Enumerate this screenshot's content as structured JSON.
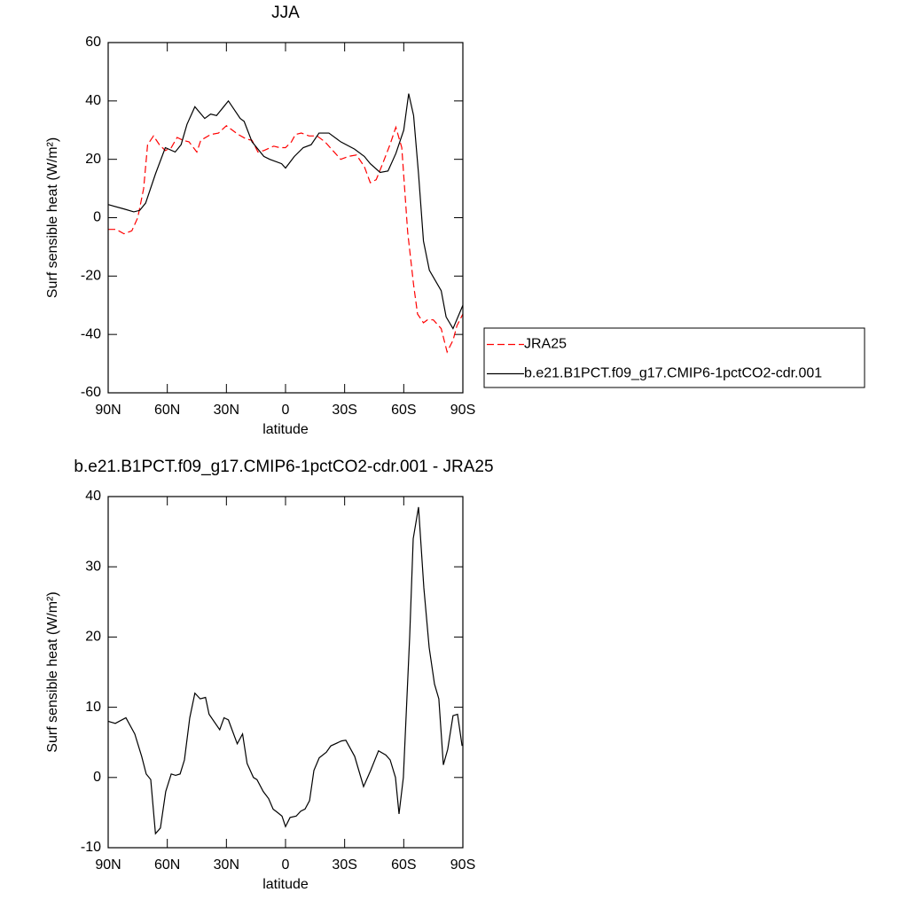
{
  "chart_data": [
    {
      "type": "line",
      "title": "JJA",
      "x_label": "latitude",
      "y_label": "Surf sensible heat (W/m²)",
      "xlim": [
        90,
        -90
      ],
      "xticks": [
        {
          "value": 90,
          "label": "90N"
        },
        {
          "value": 60,
          "label": "60N"
        },
        {
          "value": 30,
          "label": "30N"
        },
        0,
        {
          "value": -30,
          "label": "30S"
        },
        {
          "value": -60,
          "label": "60S"
        },
        {
          "value": -90,
          "label": "90S"
        }
      ],
      "ylim": [
        -60,
        60
      ],
      "yticks": [
        -60,
        -40,
        -20,
        0,
        20,
        40,
        60
      ],
      "legend": "right",
      "series": [
        {
          "name": "JRA25",
          "color": "#ff0000",
          "line_style": "dashed",
          "x": [
            90,
            86,
            82,
            78,
            75,
            72,
            70,
            67,
            64,
            61,
            58,
            55,
            52,
            49,
            45,
            43,
            38,
            34,
            30,
            27,
            24,
            20,
            17,
            14,
            11,
            6,
            3,
            0,
            -3,
            -5,
            -8,
            -12,
            -16,
            -20,
            -24,
            -28,
            -32,
            -36,
            -40,
            -43,
            -46,
            -49,
            -53,
            -56,
            -59,
            -62,
            -65,
            -67,
            -70,
            -72,
            -75,
            -79,
            -82,
            -85,
            -87,
            -90
          ],
          "values": [
            -4,
            -4,
            -5.5,
            -4.5,
            0,
            10,
            25,
            28,
            25,
            23,
            24,
            27.5,
            26.5,
            26,
            22.5,
            26.5,
            28.5,
            29,
            31.5,
            30,
            28.5,
            27,
            26.5,
            22.5,
            23,
            24.5,
            24,
            24,
            26,
            28.5,
            29,
            28,
            28,
            26,
            23,
            20,
            21,
            21.5,
            17.5,
            12,
            13,
            18,
            25,
            31,
            24,
            -5,
            -23,
            -33,
            -36,
            -35,
            -35,
            -38,
            -46,
            -42,
            -37,
            -33
          ]
        },
        {
          "name": "b.e21.B1PCT.f09_g17.CMIP6-1pctCO2-cdr.001",
          "color": "#000000",
          "line_style": "solid",
          "x": [
            90,
            82,
            77,
            74,
            71,
            66,
            61,
            56,
            53,
            50,
            46,
            41,
            38,
            35,
            29,
            23,
            21,
            17,
            11,
            8,
            2,
            0,
            -4.5,
            -9,
            -13,
            -17,
            -22,
            -28,
            -35,
            -40,
            -43,
            -48,
            -52,
            -56,
            -60,
            -62.5,
            -65,
            -67.5,
            -70,
            -73,
            -79,
            -81.5,
            -85,
            -90
          ],
          "values": [
            4.5,
            3,
            2,
            2.5,
            5,
            15,
            24,
            22.5,
            25,
            32,
            38,
            34,
            35.5,
            35,
            40,
            34,
            33,
            26,
            21,
            20,
            18.5,
            17,
            21,
            24,
            25,
            29,
            29,
            26,
            23.5,
            21,
            18.5,
            15.5,
            16,
            22,
            30,
            42.5,
            35,
            15,
            -8,
            -18,
            -25,
            -34,
            -38,
            -30
          ]
        }
      ]
    },
    {
      "type": "line",
      "title": "b.e21.B1PCT.f09_g17.CMIP6-1pctCO2-cdr.001 - JRA25",
      "x_label": "latitude",
      "y_label": "Surf sensible heat (W/m²)",
      "xlim": [
        90,
        -90
      ],
      "xticks": [
        {
          "value": 90,
          "label": "90N"
        },
        {
          "value": 60,
          "label": "60N"
        },
        {
          "value": 30,
          "label": "30N"
        },
        0,
        {
          "value": -30,
          "label": "30S"
        },
        {
          "value": -60,
          "label": "60S"
        },
        {
          "value": -90,
          "label": "90S"
        }
      ],
      "ylim": [
        -10,
        40
      ],
      "yticks": [
        -10,
        0,
        10,
        20,
        30,
        40
      ],
      "series": [
        {
          "color": "#000000",
          "line_style": "solid",
          "x": [
            90,
            86.4,
            81,
            76.5,
            73,
            70.7,
            68.4,
            66,
            63.5,
            60.8,
            58,
            55.8,
            53.5,
            51.3,
            48.6,
            46,
            43.3,
            40.6,
            38.8,
            33.4,
            31.2,
            29,
            24.5,
            21.8,
            19.5,
            16.3,
            14.5,
            11.3,
            8.6,
            6.3,
            4,
            1.8,
            0,
            -2.3,
            -5.4,
            -7.7,
            -9.9,
            -12.2,
            -14.4,
            -17.1,
            -20.7,
            -23,
            -28.4,
            -30.6,
            -35.1,
            -39.6,
            -43.2,
            -47.2,
            -50.9,
            -53.1,
            -55.8,
            -57.6,
            -59.8,
            -63,
            -64.8,
            -67.5,
            -70.2,
            -72.9,
            -75.6,
            -77.8,
            -80.1,
            -82.3,
            -85,
            -87.3,
            -89.6
          ],
          "values": [
            8,
            7.7,
            8.5,
            6.2,
            3,
            0.5,
            -0.3,
            -8,
            -7.2,
            -2,
            0.5,
            0.3,
            0.5,
            2.5,
            8.5,
            12,
            11.2,
            11.4,
            9,
            6.8,
            8.5,
            8.2,
            4.8,
            6.2,
            2,
            0,
            -0.3,
            -2,
            -3,
            -4.5,
            -5,
            -5.5,
            -7,
            -5.7,
            -5.5,
            -4.8,
            -4.5,
            -3.3,
            1,
            2.8,
            3.6,
            4.5,
            5.2,
            5.3,
            3,
            -1.3,
            1,
            3.8,
            3.2,
            2.5,
            0,
            -5.2,
            0,
            20,
            34,
            38.5,
            27,
            18.5,
            13.3,
            11.2,
            1.8,
            4,
            8.8,
            9,
            4.5
          ]
        }
      ]
    }
  ]
}
